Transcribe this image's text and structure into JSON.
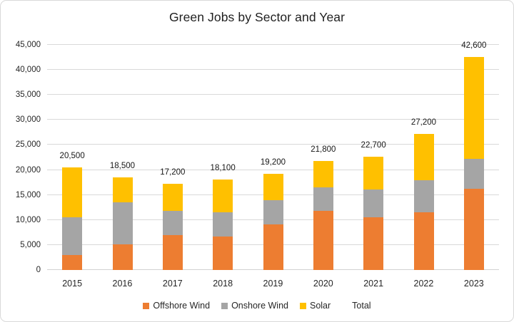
{
  "window": {
    "background": "#ffffff",
    "border_color": "#d9d9d9"
  },
  "chart_data": {
    "type": "bar",
    "stacked": true,
    "title": "Green Jobs by Sector and Year",
    "categories": [
      "2015",
      "2016",
      "2017",
      "2018",
      "2019",
      "2020",
      "2021",
      "2022",
      "2023"
    ],
    "series": [
      {
        "name": "Offshore Wind",
        "color": "#ED7D31",
        "values": [
          3000,
          5100,
          7000,
          6700,
          9100,
          11800,
          10500,
          11500,
          16300
        ]
      },
      {
        "name": "Onshore Wind",
        "color": "#A5A5A5",
        "values": [
          7500,
          8400,
          4800,
          4800,
          4900,
          4700,
          5600,
          6500,
          5900
        ]
      },
      {
        "name": "Solar",
        "color": "#FFC000",
        "values": [
          10000,
          5000,
          5400,
          6600,
          5200,
          5300,
          6600,
          9200,
          20400
        ]
      }
    ],
    "totals": [
      20500,
      18500,
      17200,
      18100,
      19200,
      21800,
      22700,
      27200,
      42600
    ],
    "total_labels": [
      "20,500",
      "18,500",
      "17,200",
      "18,100",
      "19,200",
      "21,800",
      "22,700",
      "27,200",
      "42,600"
    ],
    "legend": {
      "position": "bottom",
      "entries": [
        "Offshore Wind",
        "Onshore Wind",
        "Solar",
        "Total"
      ],
      "total_label": "Total"
    },
    "y_axis": {
      "min": 0,
      "max": 45000,
      "step": 5000,
      "tick_labels": [
        "0",
        "5,000",
        "10,000",
        "15,000",
        "20,000",
        "25,000",
        "30,000",
        "35,000",
        "40,000",
        "45,000"
      ]
    },
    "x_axis": {
      "tick_labels": [
        "2015",
        "2016",
        "2017",
        "2018",
        "2019",
        "2020",
        "2021",
        "2022",
        "2023"
      ]
    },
    "grid": true,
    "style": {
      "grid_color": "#d9d9d9",
      "axis_line_color": "#d2d2d2",
      "text_color": "#262626",
      "title_color": "#1f1f1f",
      "data_label_color": "#161616"
    }
  }
}
